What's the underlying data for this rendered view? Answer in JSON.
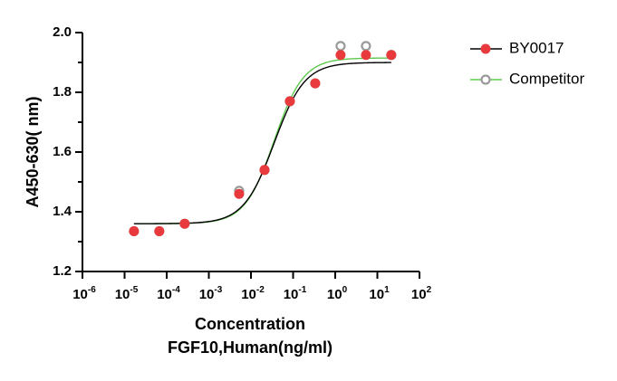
{
  "chart_data": {
    "type": "scatter",
    "xscale": "log",
    "xlim": [
      1e-06,
      100
    ],
    "ylim": [
      1.2,
      2.0
    ],
    "ylabel": "A450-630( nm)",
    "xlabel": "Concentration",
    "xlabel_line2": "FGF10,Human(ng/ml)",
    "legend_position": "top-right",
    "grid": false,
    "y_ticks": [
      "1.2",
      "1.4",
      "1.6",
      "1.8",
      "2.0"
    ],
    "x_ticks": [
      {
        "base": "10",
        "exp": "-6",
        "value": 1e-06
      },
      {
        "base": "10",
        "exp": "-5",
        "value": 1e-05
      },
      {
        "base": "10",
        "exp": "-4",
        "value": 0.0001
      },
      {
        "base": "10",
        "exp": "-3",
        "value": 0.001
      },
      {
        "base": "10",
        "exp": "-2",
        "value": 0.01
      },
      {
        "base": "10",
        "exp": "-1",
        "value": 0.1
      },
      {
        "base": "10",
        "exp": "0",
        "value": 1
      },
      {
        "base": "10",
        "exp": "1",
        "value": 10
      },
      {
        "base": "10",
        "exp": "2",
        "value": 100
      }
    ],
    "series": [
      {
        "name": "BY0017",
        "color": "#e8393d",
        "line_color": "#000000",
        "marker": "filled-circle",
        "points": [
          {
            "x": 1.67e-05,
            "y": 1.335
          },
          {
            "x": 6.67e-05,
            "y": 1.335
          },
          {
            "x": 0.000267,
            "y": 1.36
          },
          {
            "x": 0.00524,
            "y": 1.46
          },
          {
            "x": 0.021,
            "y": 1.54
          },
          {
            "x": 0.0838,
            "y": 1.77
          },
          {
            "x": 0.335,
            "y": 1.83
          },
          {
            "x": 1.34,
            "y": 1.925
          },
          {
            "x": 5.36,
            "y": 1.925
          },
          {
            "x": 21.4,
            "y": 1.925
          }
        ],
        "fit": {
          "bottom": 1.36,
          "top": 1.9,
          "logEC50": -1.45,
          "hill": 1.2
        }
      },
      {
        "name": "Competitor",
        "color": "#9a9a9a",
        "line_color": "#5ec84e",
        "marker": "open-circle",
        "points": [
          {
            "x": 1.67e-05,
            "y": 1.335
          },
          {
            "x": 6.67e-05,
            "y": 1.335
          },
          {
            "x": 0.000267,
            "y": 1.36
          },
          {
            "x": 0.00524,
            "y": 1.47
          },
          {
            "x": 0.021,
            "y": 1.54
          },
          {
            "x": 0.0838,
            "y": 1.77
          },
          {
            "x": 0.335,
            "y": 1.83
          },
          {
            "x": 1.34,
            "y": 1.955
          },
          {
            "x": 5.36,
            "y": 1.955
          },
          {
            "x": 21.4,
            "y": 1.925
          }
        ],
        "fit": {
          "bottom": 1.36,
          "top": 1.915,
          "logEC50": -1.45,
          "hill": 1.25
        }
      }
    ]
  }
}
